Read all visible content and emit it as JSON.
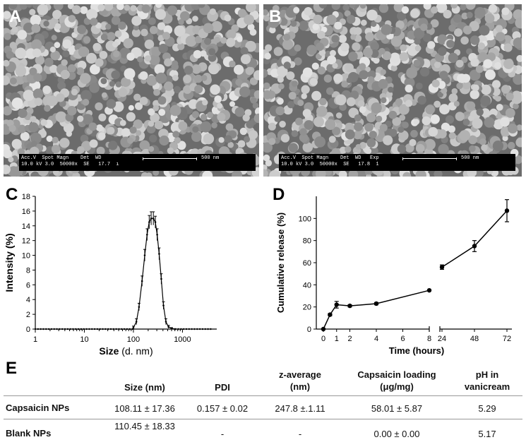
{
  "panels": {
    "a_letter": "A",
    "b_letter": "B",
    "c_letter": "C",
    "d_letter": "D",
    "e_letter": "E"
  },
  "sem_a": {
    "row1": "Acc.V  Spot Magn    Det  WD",
    "row2": "10.0 kV 3.0  50000x  SE   17.7  ı",
    "scale_label": "500 nm"
  },
  "sem_b": {
    "row1": "Acc.V  Spot Magn    Det  WD   Exp",
    "row2": "10.0 kV 3.0  50000x  SE   17.8  1",
    "scale_label": "500 nm"
  },
  "chart_data": [
    {
      "type": "line",
      "panel": "C",
      "xlabel_bold": "Size",
      "xlabel_rest": " (d. nm)",
      "ylabel": "Intensity (%)",
      "xscale": "log",
      "xlim": [
        1,
        5000
      ],
      "ylim": [
        0,
        18
      ],
      "xticks": [
        1,
        10,
        100,
        1000
      ],
      "xtick_labels": [
        "1",
        "10",
        "100",
        "1000"
      ],
      "yticks": [
        0,
        2,
        4,
        6,
        8,
        10,
        12,
        14,
        16,
        18
      ],
      "x": [
        100,
        115,
        130,
        150,
        170,
        190,
        210,
        230,
        255,
        280,
        305,
        335,
        370,
        410,
        460,
        520,
        600,
        700
      ],
      "y": [
        0.2,
        1.0,
        3.0,
        6.5,
        10.0,
        12.8,
        14.5,
        15.0,
        15.0,
        14.5,
        12.8,
        10.2,
        6.8,
        3.2,
        1.0,
        0.3,
        0.1,
        0
      ],
      "err": [
        0.2,
        0.4,
        0.5,
        0.7,
        0.8,
        0.8,
        0.9,
        0.9,
        0.9,
        0.8,
        0.8,
        0.8,
        0.7,
        0.5,
        0.4,
        0.2,
        0.1,
        0
      ],
      "grid": false
    },
    {
      "type": "line",
      "panel": "D",
      "xlabel": "Time (hours)",
      "ylabel": "Cumulative release (%)",
      "ylim": [
        0,
        120
      ],
      "yticks": [
        0,
        20,
        40,
        60,
        80,
        100
      ],
      "x_segment1_ticks": [
        0,
        1,
        2,
        4,
        6,
        8
      ],
      "x_segment2_ticks": [
        24,
        48,
        72
      ],
      "x": [
        0,
        0.5,
        1,
        2,
        4,
        8,
        24,
        48,
        72
      ],
      "y": [
        0,
        13,
        22,
        21,
        23,
        35,
        56,
        75,
        107
      ],
      "err": [
        0,
        1,
        3,
        1,
        1,
        0,
        2,
        5,
        10
      ],
      "grid": false
    }
  ],
  "table": {
    "headers": [
      "Size (nm)",
      "PDI",
      "z-average\n(nm)",
      "Capsaicin loading\n(μg/mg)",
      "pH in\nvanicream"
    ],
    "rows": [
      {
        "label": "Capsaicin NPs",
        "cells": [
          "108.11 ± 17.36",
          "0.157 ± 0.02",
          "247.8 ±.1.11",
          "58.01 ± 5.87",
          "5.29"
        ]
      },
      {
        "label": "Blank NPs",
        "cells": [
          "110.45 ± 18.33",
          "-",
          "-",
          "0.00 ± 0.00",
          "5.17"
        ]
      }
    ]
  }
}
